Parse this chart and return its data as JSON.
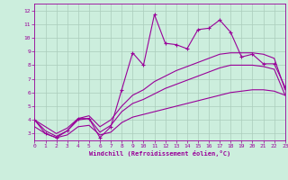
{
  "xlabel": "Windchill (Refroidissement éolien,°C)",
  "x": [
    0,
    1,
    2,
    3,
    4,
    5,
    6,
    7,
    8,
    9,
    10,
    11,
    12,
    13,
    14,
    15,
    16,
    17,
    18,
    19,
    20,
    21,
    22,
    23
  ],
  "y_main": [
    4.0,
    3.0,
    2.7,
    3.2,
    4.1,
    4.1,
    2.7,
    3.5,
    6.2,
    8.9,
    8.0,
    11.7,
    9.6,
    9.5,
    9.2,
    10.6,
    10.7,
    11.3,
    10.4,
    8.6,
    8.8,
    8.1,
    8.1,
    6.4
  ],
  "y_upper": [
    4.0,
    3.5,
    3.0,
    3.4,
    4.1,
    4.3,
    3.5,
    4.0,
    5.0,
    5.8,
    6.2,
    6.8,
    7.2,
    7.6,
    7.9,
    8.2,
    8.5,
    8.8,
    8.9,
    8.9,
    8.9,
    8.8,
    8.5,
    6.2
  ],
  "y_mid": [
    4.0,
    3.2,
    2.8,
    3.2,
    4.0,
    4.1,
    3.1,
    3.6,
    4.6,
    5.2,
    5.5,
    5.9,
    6.3,
    6.6,
    6.9,
    7.2,
    7.5,
    7.8,
    8.0,
    8.0,
    8.0,
    7.9,
    7.7,
    5.8
  ],
  "y_lower": [
    3.5,
    3.0,
    2.7,
    2.9,
    3.5,
    3.6,
    2.9,
    3.1,
    3.8,
    4.2,
    4.4,
    4.6,
    4.8,
    5.0,
    5.2,
    5.4,
    5.6,
    5.8,
    6.0,
    6.1,
    6.2,
    6.2,
    6.1,
    5.8
  ],
  "color": "#990099",
  "bg_color": "#cceedd",
  "grid_color": "#aaccbb",
  "xlim": [
    0,
    23
  ],
  "ylim": [
    2.5,
    12.5
  ],
  "yticks": [
    3,
    4,
    5,
    6,
    7,
    8,
    9,
    10,
    11,
    12
  ],
  "xticks": [
    0,
    1,
    2,
    3,
    4,
    5,
    6,
    7,
    8,
    9,
    10,
    11,
    12,
    13,
    14,
    15,
    16,
    17,
    18,
    19,
    20,
    21,
    22,
    23
  ],
  "marker": "+",
  "markersize": 3,
  "linewidth": 0.8
}
